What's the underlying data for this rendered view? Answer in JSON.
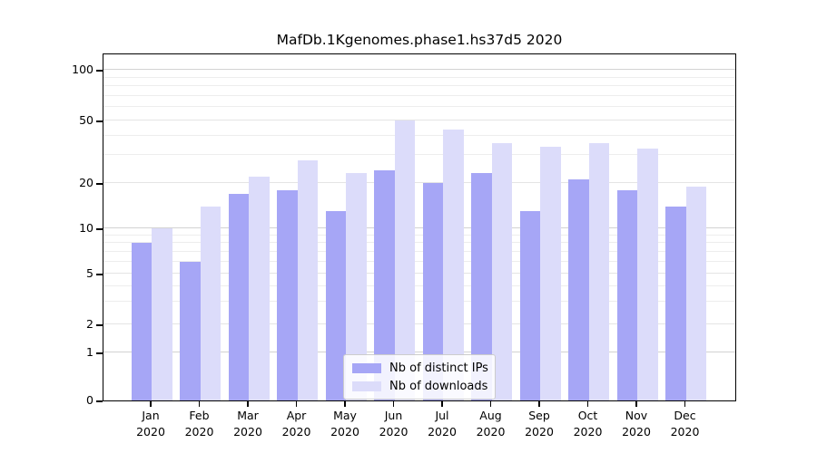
{
  "figure": {
    "title": "MafDb.1Kgenomes.phase1.hs37d5 2020"
  },
  "chart_data": {
    "type": "bar",
    "title": "MafDb.1Kgenomes.phase1.hs37d5 2020",
    "categories": [
      "Jan",
      "Feb",
      "Mar",
      "Apr",
      "May",
      "Jun",
      "Jul",
      "Aug",
      "Sep",
      "Oct",
      "Nov",
      "Dec"
    ],
    "category_year": "2020",
    "series": [
      {
        "name": "Nb of distinct IPs",
        "color": "#a6a6f6",
        "values": [
          8,
          6,
          17,
          18,
          13,
          24,
          20,
          23,
          13,
          21,
          18,
          14
        ]
      },
      {
        "name": "Nb of downloads",
        "color": "#dcdcfa",
        "values": [
          10,
          14,
          22,
          28,
          23,
          50,
          44,
          36,
          34,
          36,
          33,
          19
        ]
      }
    ],
    "yscale": "symlog",
    "ylim": [
      0,
      130
    ],
    "y_ticks": [
      0,
      1,
      2,
      5,
      10,
      20,
      50,
      100
    ],
    "y_major_gridlines": [
      1,
      10,
      100
    ],
    "y_minor_gridlines": [
      3,
      4,
      6,
      7,
      8,
      9,
      30,
      40,
      60,
      70,
      80,
      90
    ],
    "xlabel": "",
    "ylabel": "",
    "grid": true,
    "legend_position": "inside-bottom-center"
  },
  "colors": {
    "background": "#ffffff",
    "bar_distinct_ips": "#a6a6f6",
    "bar_downloads": "#dcdcfa",
    "major_grid": "#d2d2d2",
    "labeled_grid": "#e4e4e4",
    "minor_grid": "#ededed",
    "spine": "#000000",
    "legend_border": "#cccccc",
    "text": "#000000"
  }
}
